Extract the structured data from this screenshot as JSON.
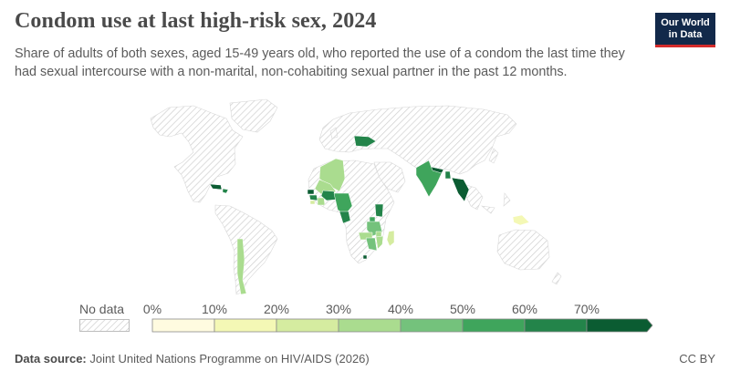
{
  "header": {
    "title": "Condom use at last high-risk sex, 2024",
    "subtitle": "Share of adults of both sexes, aged 15-49 years old, who reported the use of a condom the last time they had sexual intercourse with a non-marital, non-cohabiting sexual partner in the past 12 months.",
    "logo_line1": "Our World",
    "logo_line2": "in Data"
  },
  "legend": {
    "no_data_label": "No data",
    "ticks": [
      "0%",
      "10%",
      "20%",
      "30%",
      "40%",
      "50%",
      "60%",
      "70%"
    ],
    "bins": [
      {
        "from": 0,
        "to": 10,
        "color": "#fffbe0"
      },
      {
        "from": 10,
        "to": 20,
        "color": "#f4f8b5"
      },
      {
        "from": 20,
        "to": 30,
        "color": "#d5eca0"
      },
      {
        "from": 30,
        "to": 40,
        "color": "#aadc8f"
      },
      {
        "from": 40,
        "to": 50,
        "color": "#74c27c"
      },
      {
        "from": 50,
        "to": 60,
        "color": "#3fa55c"
      },
      {
        "from": 60,
        "to": 70,
        "color": "#23844a"
      },
      {
        "from": 70,
        "to": null,
        "color": "#0b5c32"
      }
    ]
  },
  "map_data": {
    "countries_with_data": [
      {
        "region": "Algeria",
        "bin": 3
      },
      {
        "region": "Mali",
        "bin": 3
      },
      {
        "region": "Senegal",
        "bin": 7
      },
      {
        "region": "Guinea",
        "bin": 6
      },
      {
        "region": "Sierra Leone",
        "bin": 2
      },
      {
        "region": "Cote d'Ivoire",
        "bin": 3
      },
      {
        "region": "Burkina Faso",
        "bin": 2
      },
      {
        "region": "Nigeria",
        "bin": 6
      },
      {
        "region": "Cameroon",
        "bin": 5
      },
      {
        "region": "Congo",
        "bin": 6
      },
      {
        "region": "Ethiopia",
        "bin": 6
      },
      {
        "region": "Uganda",
        "bin": 5
      },
      {
        "region": "Tanzania",
        "bin": 4
      },
      {
        "region": "Malawi",
        "bin": 3
      },
      {
        "region": "Zambia",
        "bin": 3
      },
      {
        "region": "Zimbabwe",
        "bin": 4
      },
      {
        "region": "Mozambique",
        "bin": 3
      },
      {
        "region": "Madagascar",
        "bin": 2
      },
      {
        "region": "Eswatini",
        "bin": 7
      },
      {
        "region": "Ukraine",
        "bin": 6
      },
      {
        "region": "Nepal",
        "bin": 7
      },
      {
        "region": "India",
        "bin": 5
      },
      {
        "region": "Bangladesh",
        "bin": 6
      },
      {
        "region": "Myanmar",
        "bin": 7
      },
      {
        "region": "Cuba",
        "bin": 7
      },
      {
        "region": "Haiti",
        "bin": 6
      },
      {
        "region": "Chile",
        "bin": 3
      },
      {
        "region": "Papua New Guinea",
        "bin": 2
      }
    ]
  },
  "footer": {
    "source_label": "Data source:",
    "source_text": "Joint United Nations Programme on HIV/AIDS (2026)",
    "license": "CC BY"
  }
}
